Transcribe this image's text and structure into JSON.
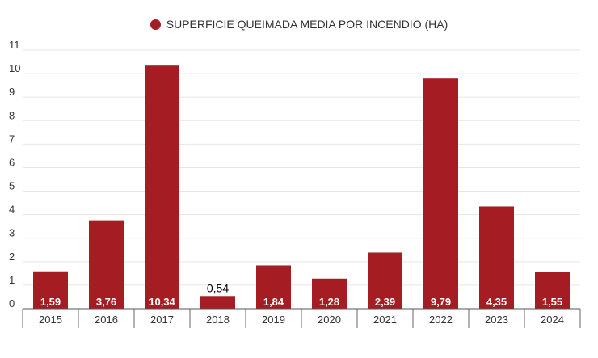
{
  "chart_data": {
    "type": "bar",
    "categories": [
      "2015",
      "2016",
      "2017",
      "2018",
      "2019",
      "2020",
      "2021",
      "2022",
      "2023",
      "2024"
    ],
    "series": [
      {
        "name": "SUPERFICIE QUEIMADA MEDIA POR INCENDIO (HA)",
        "values": [
          1.59,
          3.76,
          10.34,
          0.54,
          1.84,
          1.28,
          2.39,
          9.79,
          4.35,
          1.55
        ],
        "labels": [
          "1,59",
          "3,76",
          "10,34",
          "0,54",
          "1,84",
          "1,28",
          "2,39",
          "9,79",
          "4,35",
          "1,55"
        ]
      }
    ],
    "ylim": [
      0,
      11
    ],
    "yticks": [
      0,
      1,
      2,
      3,
      4,
      5,
      6,
      7,
      8,
      9,
      10,
      11
    ],
    "grid": true,
    "legend_placement": "top-center",
    "colors": {
      "bar": "#A51C22",
      "grid": "#E6E6E6",
      "axis": "#333333",
      "label_inside": "#FFFFFF",
      "label_outside": "#000000"
    }
  }
}
